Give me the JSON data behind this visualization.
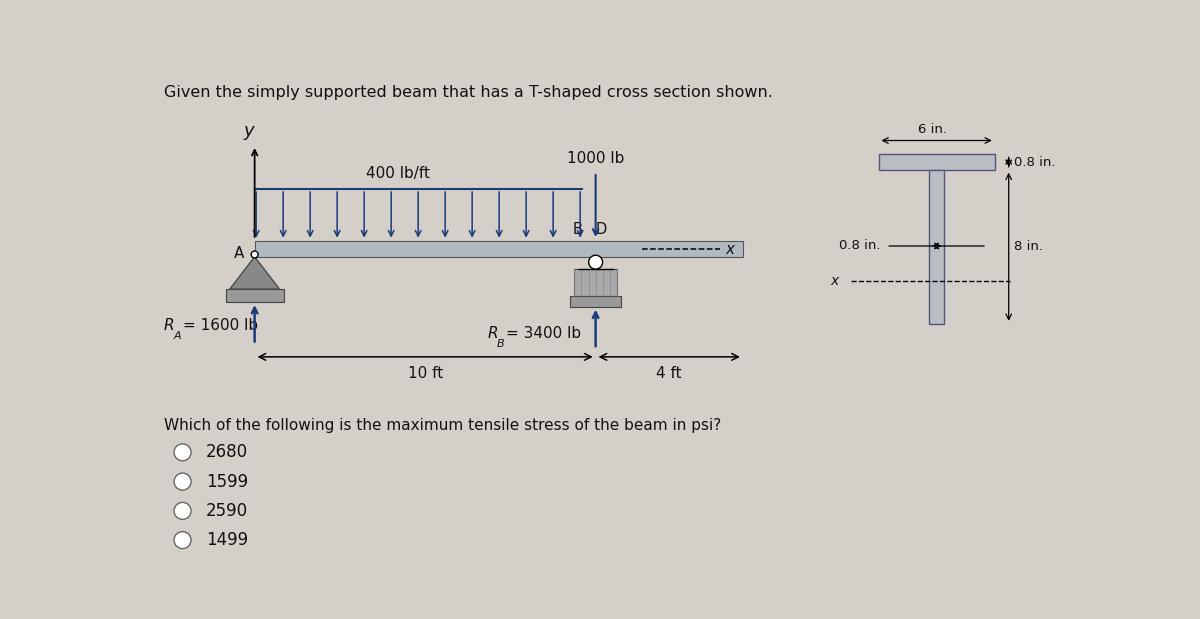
{
  "title": "Given the simply supported beam that has a T-shaped cross section shown.",
  "bg_color": "#d4cfc8",
  "question": "Which of the following is the maximum tensile stress of the beam in psi?",
  "options": [
    "2680",
    "1599",
    "2590",
    "1499"
  ],
  "beam_label_400": "400 lb/ft",
  "beam_label_1000": "1000 lb",
  "label_B": "B",
  "label_D": "D",
  "label_A": "A",
  "label_y": "y",
  "label_x": "x",
  "label_10ft": "10 ft",
  "label_4ft": "4 ft",
  "label_RA": "R",
  "label_RA_sub": "A",
  "label_RA_val": "= 1600 lb",
  "label_RB": "R",
  "label_RB_sub": "B",
  "label_RB_val": "= 3400 lb",
  "dim_6in": "6 in.",
  "dim_08in_top": "0.8 in.",
  "dim_08in_web": "0.8 in.",
  "dim_8in": "8 in.",
  "beam_color": "#b0b8c0",
  "beam_edge": "#555555",
  "support_color": "#888888",
  "arrow_color": "#1a3a7a",
  "text_color": "#111111",
  "tshape_color": "#b8bec4",
  "tshape_edge": "#555577"
}
